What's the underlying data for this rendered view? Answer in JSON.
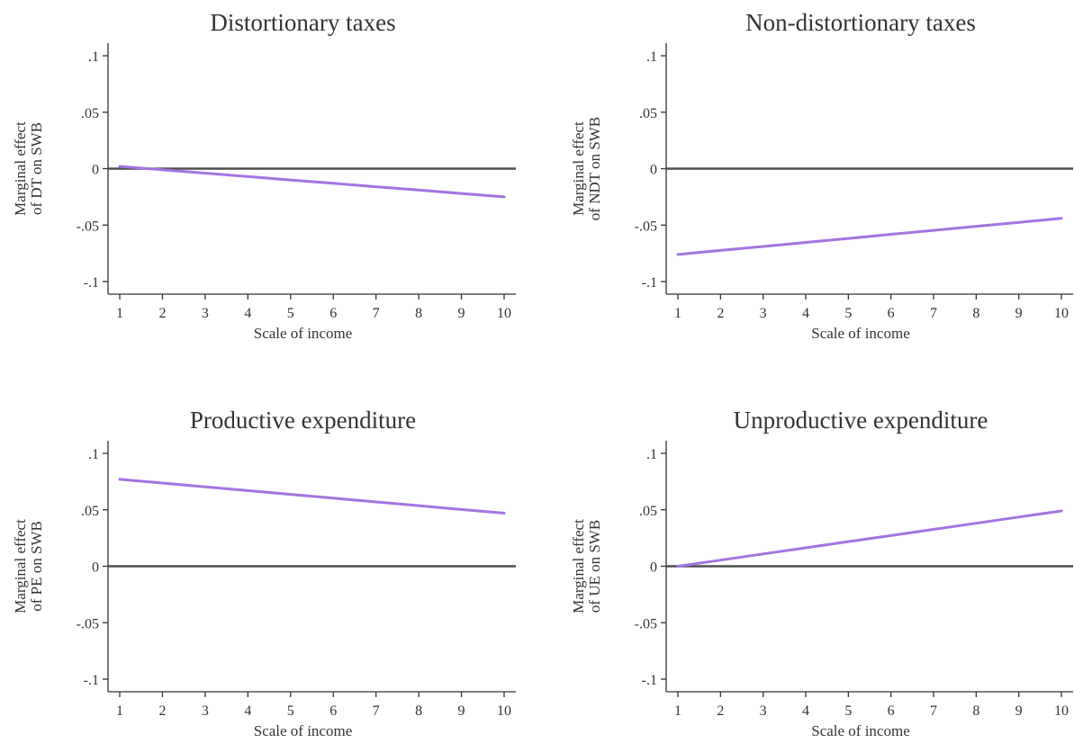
{
  "colors": {
    "series": "#a374e0",
    "zero_line": "#4d4d4d",
    "axis": "#333333"
  },
  "chart_data": [
    {
      "type": "line",
      "title": "Distortionary taxes",
      "xlabel": "Scale of income",
      "ylabel": [
        "Marginal effect",
        "of DT on SWB"
      ],
      "x": [
        1,
        2,
        3,
        4,
        5,
        6,
        7,
        8,
        9,
        10
      ],
      "xticks": [
        "1",
        "2",
        "3",
        "4",
        "5",
        "6",
        "7",
        "8",
        "9",
        "10"
      ],
      "yticks": [
        {
          "v": 0.1,
          "label": ".1"
        },
        {
          "v": 0.05,
          "label": ".05"
        },
        {
          "v": 0,
          "label": "0"
        },
        {
          "v": -0.05,
          "label": "-.05"
        },
        {
          "v": -0.1,
          "label": "-.1"
        }
      ],
      "xlim": [
        1,
        10
      ],
      "ylim": [
        -0.1,
        0.1
      ],
      "reference_line_y": 0,
      "series": [
        {
          "values": [
            0.002,
            -0.001,
            -0.004,
            -0.007,
            -0.01,
            -0.013,
            -0.016,
            -0.019,
            -0.022,
            -0.025
          ]
        }
      ]
    },
    {
      "type": "line",
      "title": "Non-distortionary taxes",
      "xlabel": "Scale of income",
      "ylabel": [
        "Marginal effect",
        "of NDT on SWB"
      ],
      "x": [
        1,
        2,
        3,
        4,
        5,
        6,
        7,
        8,
        9,
        10
      ],
      "xticks": [
        "1",
        "2",
        "3",
        "4",
        "5",
        "6",
        "7",
        "8",
        "9",
        "10"
      ],
      "yticks": [
        {
          "v": 0.1,
          "label": ".1"
        },
        {
          "v": 0.05,
          "label": ".05"
        },
        {
          "v": 0,
          "label": "0"
        },
        {
          "v": -0.05,
          "label": "-.05"
        },
        {
          "v": -0.1,
          "label": "-.1"
        }
      ],
      "xlim": [
        1,
        10
      ],
      "ylim": [
        -0.1,
        0.1
      ],
      "reference_line_y": 0,
      "series": [
        {
          "values": [
            -0.076,
            -0.0724,
            -0.0689,
            -0.0653,
            -0.0618,
            -0.0582,
            -0.0547,
            -0.0511,
            -0.0476,
            -0.044
          ]
        }
      ]
    },
    {
      "type": "line",
      "title": "Productive expenditure",
      "xlabel": "Scale of income",
      "ylabel": [
        "Marginal effect",
        "of PE on SWB"
      ],
      "x": [
        1,
        2,
        3,
        4,
        5,
        6,
        7,
        8,
        9,
        10
      ],
      "xticks": [
        "1",
        "2",
        "3",
        "4",
        "5",
        "6",
        "7",
        "8",
        "9",
        "10"
      ],
      "yticks": [
        {
          "v": 0.1,
          "label": ".1"
        },
        {
          "v": 0.05,
          "label": ".05"
        },
        {
          "v": 0,
          "label": "0"
        },
        {
          "v": -0.05,
          "label": "-.05"
        },
        {
          "v": -0.1,
          "label": "-.1"
        }
      ],
      "xlim": [
        1,
        10
      ],
      "ylim": [
        -0.1,
        0.1
      ],
      "reference_line_y": 0,
      "series": [
        {
          "values": [
            0.077,
            0.0737,
            0.0703,
            0.067,
            0.0637,
            0.0603,
            0.057,
            0.0537,
            0.0503,
            0.047
          ]
        }
      ]
    },
    {
      "type": "line",
      "title": "Unproductive expenditure",
      "xlabel": "Scale of income",
      "ylabel": [
        "Marginal effect",
        "of UE on SWB"
      ],
      "x": [
        1,
        2,
        3,
        4,
        5,
        6,
        7,
        8,
        9,
        10
      ],
      "xticks": [
        "1",
        "2",
        "3",
        "4",
        "5",
        "6",
        "7",
        "8",
        "9",
        "10"
      ],
      "yticks": [
        {
          "v": 0.1,
          "label": ".1"
        },
        {
          "v": 0.05,
          "label": ".05"
        },
        {
          "v": 0,
          "label": "0"
        },
        {
          "v": -0.05,
          "label": "-.05"
        },
        {
          "v": -0.1,
          "label": "-.1"
        }
      ],
      "xlim": [
        1,
        10
      ],
      "ylim": [
        -0.1,
        0.1
      ],
      "reference_line_y": 0,
      "series": [
        {
          "values": [
            0.0,
            0.0054,
            0.0109,
            0.0163,
            0.0218,
            0.0272,
            0.0327,
            0.0381,
            0.0436,
            0.049
          ]
        }
      ]
    }
  ]
}
